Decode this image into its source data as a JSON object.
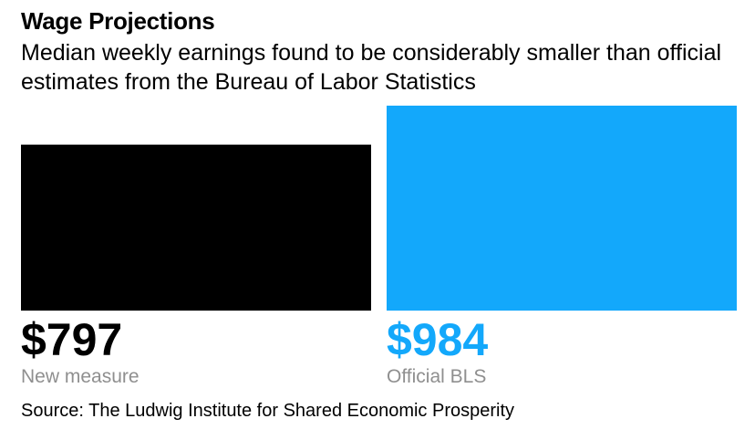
{
  "header": {
    "title": "Wage Projections",
    "subtitle": "Median weekly earnings found to be considerably smaller than official estimates from the Bureau of Labor Statistics"
  },
  "footer": {
    "source": "Source: The Ludwig Institute for Shared Economic Prosperity"
  },
  "chart_data": {
    "type": "bar",
    "title": "Wage Projections",
    "subtitle": "Median weekly earnings found to be considerably smaller than official estimates from the Bureau of Labor Statistics",
    "categories": [
      "New measure",
      "Official BLS"
    ],
    "values": [
      797,
      984
    ],
    "value_labels": [
      "$797",
      "$984"
    ],
    "colors": [
      "#000000",
      "#13a8fb"
    ],
    "label_color_muted": "#8f8f8f",
    "xlabel": "",
    "ylabel": "",
    "ylim": [
      0,
      984
    ],
    "grid": false,
    "legend": "none"
  }
}
